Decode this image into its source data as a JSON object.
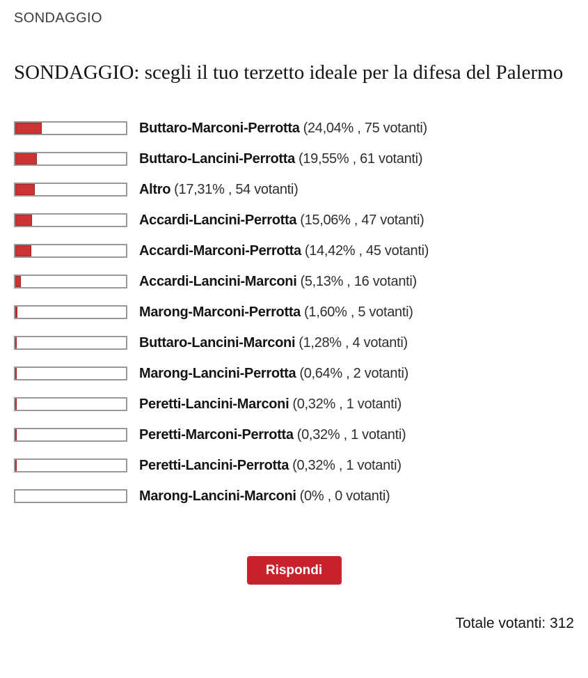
{
  "header": {
    "kicker": "SONDAGGIO",
    "title": "SONDAGGIO: scegli il tuo terzetto ideale per la difesa del Palermo"
  },
  "poll": {
    "options": [
      {
        "name": "Buttaro-Marconi-Perrotta",
        "percent": 24.04,
        "votes": 75,
        "stats": "(24,04% , 75 votanti)"
      },
      {
        "name": "Buttaro-Lancini-Perrotta",
        "percent": 19.55,
        "votes": 61,
        "stats": "(19,55% , 61 votanti)"
      },
      {
        "name": "Altro",
        "percent": 17.31,
        "votes": 54,
        "stats": "(17,31% , 54 votanti)"
      },
      {
        "name": "Accardi-Lancini-Perrotta",
        "percent": 15.06,
        "votes": 47,
        "stats": "(15,06% , 47 votanti)"
      },
      {
        "name": "Accardi-Marconi-Perrotta",
        "percent": 14.42,
        "votes": 45,
        "stats": "(14,42% , 45 votanti)"
      },
      {
        "name": "Accardi-Lancini-Marconi",
        "percent": 5.13,
        "votes": 16,
        "stats": "(5,13% , 16 votanti)"
      },
      {
        "name": "Marong-Marconi-Perrotta",
        "percent": 1.6,
        "votes": 5,
        "stats": "(1,60% , 5 votanti)"
      },
      {
        "name": "Buttaro-Lancini-Marconi",
        "percent": 1.28,
        "votes": 4,
        "stats": "(1,28% , 4 votanti)"
      },
      {
        "name": "Marong-Lancini-Perrotta",
        "percent": 0.64,
        "votes": 2,
        "stats": "(0,64% , 2 votanti)"
      },
      {
        "name": "Peretti-Lancini-Marconi",
        "percent": 0.32,
        "votes": 1,
        "stats": "(0,32% , 1 votanti)"
      },
      {
        "name": "Peretti-Marconi-Perrotta",
        "percent": 0.32,
        "votes": 1,
        "stats": "(0,32% , 1 votanti)"
      },
      {
        "name": "Peretti-Lancini-Perrotta",
        "percent": 0.32,
        "votes": 1,
        "stats": "(0,32% , 1 votanti)"
      },
      {
        "name": "Marong-Lancini-Marconi",
        "percent": 0,
        "votes": 0,
        "stats": "(0% , 0 votanti)"
      }
    ],
    "button_label": "Rispondi",
    "total_label": "Totale votanti:",
    "total_value": "312"
  },
  "colors": {
    "bar_fill": "#cc3333",
    "bar_fill_border": "#a32626",
    "bar_border": "#999999",
    "button_bg": "#c8232c",
    "button_text": "#ffffff",
    "kicker_text": "#3c3c3c",
    "body_text": "#141414"
  },
  "chart_data": {
    "type": "bar",
    "orientation": "horizontal",
    "title": "SONDAGGIO: scegli il tuo terzetto ideale per la difesa del Palermo",
    "categories": [
      "Buttaro-Marconi-Perrotta",
      "Buttaro-Lancini-Perrotta",
      "Altro",
      "Accardi-Lancini-Perrotta",
      "Accardi-Marconi-Perrotta",
      "Accardi-Lancini-Marconi",
      "Marong-Marconi-Perrotta",
      "Buttaro-Lancini-Marconi",
      "Marong-Lancini-Perrotta",
      "Peretti-Lancini-Marconi",
      "Peretti-Marconi-Perrotta",
      "Peretti-Lancini-Perrotta",
      "Marong-Lancini-Marconi"
    ],
    "values": [
      24.04,
      19.55,
      17.31,
      15.06,
      14.42,
      5.13,
      1.6,
      1.28,
      0.64,
      0.32,
      0.32,
      0.32,
      0
    ],
    "votes": [
      75,
      61,
      54,
      47,
      45,
      16,
      5,
      4,
      2,
      1,
      1,
      1,
      0
    ],
    "value_unit": "%",
    "xlim": [
      0,
      100
    ],
    "total_votes": 312
  }
}
